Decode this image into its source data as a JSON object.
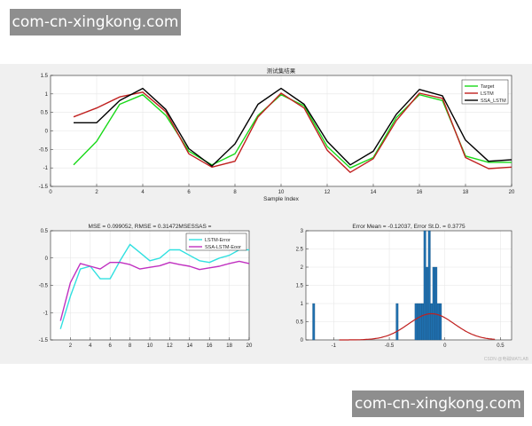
{
  "watermarks": {
    "top": "com-cn-xingkong.com",
    "bottom": "com-cn-xingkong.com",
    "corner": "CSDN @电磁MATLAB"
  },
  "colors": {
    "target": "#19d919",
    "lstm": "#c0201f",
    "ssa_lstm": "#000000",
    "lstm_error": "#30e0e0",
    "ssa_lstm_error": "#c030c0",
    "histogram": "#1f6fae",
    "fit": "#c0201f"
  },
  "chart_data": [
    {
      "type": "line",
      "title": "测试集结果",
      "xlabel": "Sample Index",
      "ylabel": "",
      "xlim": [
        0,
        20
      ],
      "ylim": [
        -1.5,
        1.5
      ],
      "xticks": [
        0,
        2,
        4,
        6,
        8,
        10,
        12,
        14,
        16,
        18,
        20
      ],
      "yticks": [
        1.5,
        1,
        0.5,
        0,
        -0.5,
        -1,
        -1.5
      ],
      "legend": "top-right",
      "x": [
        1,
        2,
        3,
        4,
        5,
        6,
        7,
        8,
        9,
        10,
        11,
        12,
        13,
        14,
        15,
        16,
        17,
        18,
        19,
        20
      ],
      "series": [
        {
          "name": "Target",
          "color": "#19d919",
          "values": [
            -0.92,
            -0.28,
            0.72,
            0.98,
            0.42,
            -0.55,
            -0.92,
            -0.62,
            0.42,
            0.98,
            0.68,
            -0.42,
            -1.0,
            -0.72,
            0.36,
            0.98,
            0.82,
            -0.68,
            -0.85,
            -0.85
          ]
        },
        {
          "name": "LSTM",
          "color": "#c0201f",
          "values": [
            0.38,
            0.62,
            0.92,
            1.05,
            0.52,
            -0.62,
            -0.98,
            -0.82,
            0.38,
            1.02,
            0.62,
            -0.52,
            -1.12,
            -0.75,
            0.28,
            1.02,
            0.88,
            -0.72,
            -1.02,
            -0.98
          ]
        },
        {
          "name": "SSA_LSTM",
          "color": "#000000",
          "values": [
            0.22,
            0.22,
            0.82,
            1.15,
            0.58,
            -0.48,
            -0.95,
            -0.35,
            0.72,
            1.15,
            0.72,
            -0.28,
            -0.92,
            -0.55,
            0.45,
            1.12,
            0.95,
            -0.25,
            -0.82,
            -0.78
          ]
        }
      ]
    },
    {
      "type": "line",
      "title": "MSE = 0.099052, RMSE = 0.31472MSESSAS =",
      "xlabel": "",
      "ylabel": "",
      "xlim": [
        0,
        20
      ],
      "ylim": [
        -1.5,
        0.5
      ],
      "xticks": [
        2,
        4,
        6,
        8,
        10,
        12,
        14,
        16,
        18,
        20
      ],
      "yticks": [
        0.5,
        0,
        -0.5,
        -1,
        -1.5
      ],
      "legend": "top-right",
      "x": [
        1,
        2,
        3,
        4,
        5,
        6,
        7,
        8,
        9,
        10,
        11,
        12,
        13,
        14,
        15,
        16,
        17,
        18,
        19,
        20
      ],
      "series": [
        {
          "name": "LSTM-Error",
          "color": "#30e0e0",
          "values": [
            -1.3,
            -0.7,
            -0.2,
            -0.15,
            -0.38,
            -0.38,
            -0.05,
            0.25,
            0.1,
            -0.05,
            0.0,
            0.15,
            0.15,
            0.05,
            -0.05,
            -0.08,
            0.0,
            0.05,
            0.15,
            0.15
          ]
        },
        {
          "name": "SSA-LSTM-Eoor",
          "color": "#c030c0",
          "values": [
            -1.15,
            -0.45,
            -0.1,
            -0.15,
            -0.2,
            -0.08,
            -0.08,
            -0.12,
            -0.2,
            -0.17,
            -0.14,
            -0.08,
            -0.12,
            -0.15,
            -0.21,
            -0.18,
            -0.15,
            -0.1,
            -0.06,
            -0.1
          ]
        }
      ]
    },
    {
      "type": "bar",
      "subtype": "histogram",
      "title": "Error Mean = -0.12037, Error St.D. = 0.3775",
      "xlabel": "",
      "ylabel": "",
      "xlim": [
        -1.25,
        0.6
      ],
      "ylim": [
        0,
        3
      ],
      "xticks": [
        -1,
        -0.5,
        0,
        0.5
      ],
      "yticks": [
        0,
        0.5,
        1,
        1.5,
        2,
        2.5,
        3
      ],
      "bins": [
        {
          "x0": -1.19,
          "x1": -1.17,
          "count": 1
        },
        {
          "x0": -0.44,
          "x1": -0.42,
          "count": 1
        },
        {
          "x0": -0.27,
          "x1": -0.25,
          "count": 1
        },
        {
          "x0": -0.25,
          "x1": -0.23,
          "count": 1
        },
        {
          "x0": -0.23,
          "x1": -0.21,
          "count": 1
        },
        {
          "x0": -0.21,
          "x1": -0.19,
          "count": 1
        },
        {
          "x0": -0.19,
          "x1": -0.17,
          "count": 3
        },
        {
          "x0": -0.17,
          "x1": -0.15,
          "count": 2
        },
        {
          "x0": -0.15,
          "x1": -0.13,
          "count": 3
        },
        {
          "x0": -0.13,
          "x1": -0.11,
          "count": 1
        },
        {
          "x0": -0.11,
          "x1": -0.09,
          "count": 2
        },
        {
          "x0": -0.09,
          "x1": -0.07,
          "count": 2
        },
        {
          "x0": -0.07,
          "x1": -0.05,
          "count": 1
        },
        {
          "x0": -0.05,
          "x1": -0.03,
          "count": 1
        }
      ],
      "fit_curve": {
        "color": "#c0201f",
        "mean": -0.12037,
        "std": 0.3775,
        "peak": 0.72
      }
    }
  ]
}
